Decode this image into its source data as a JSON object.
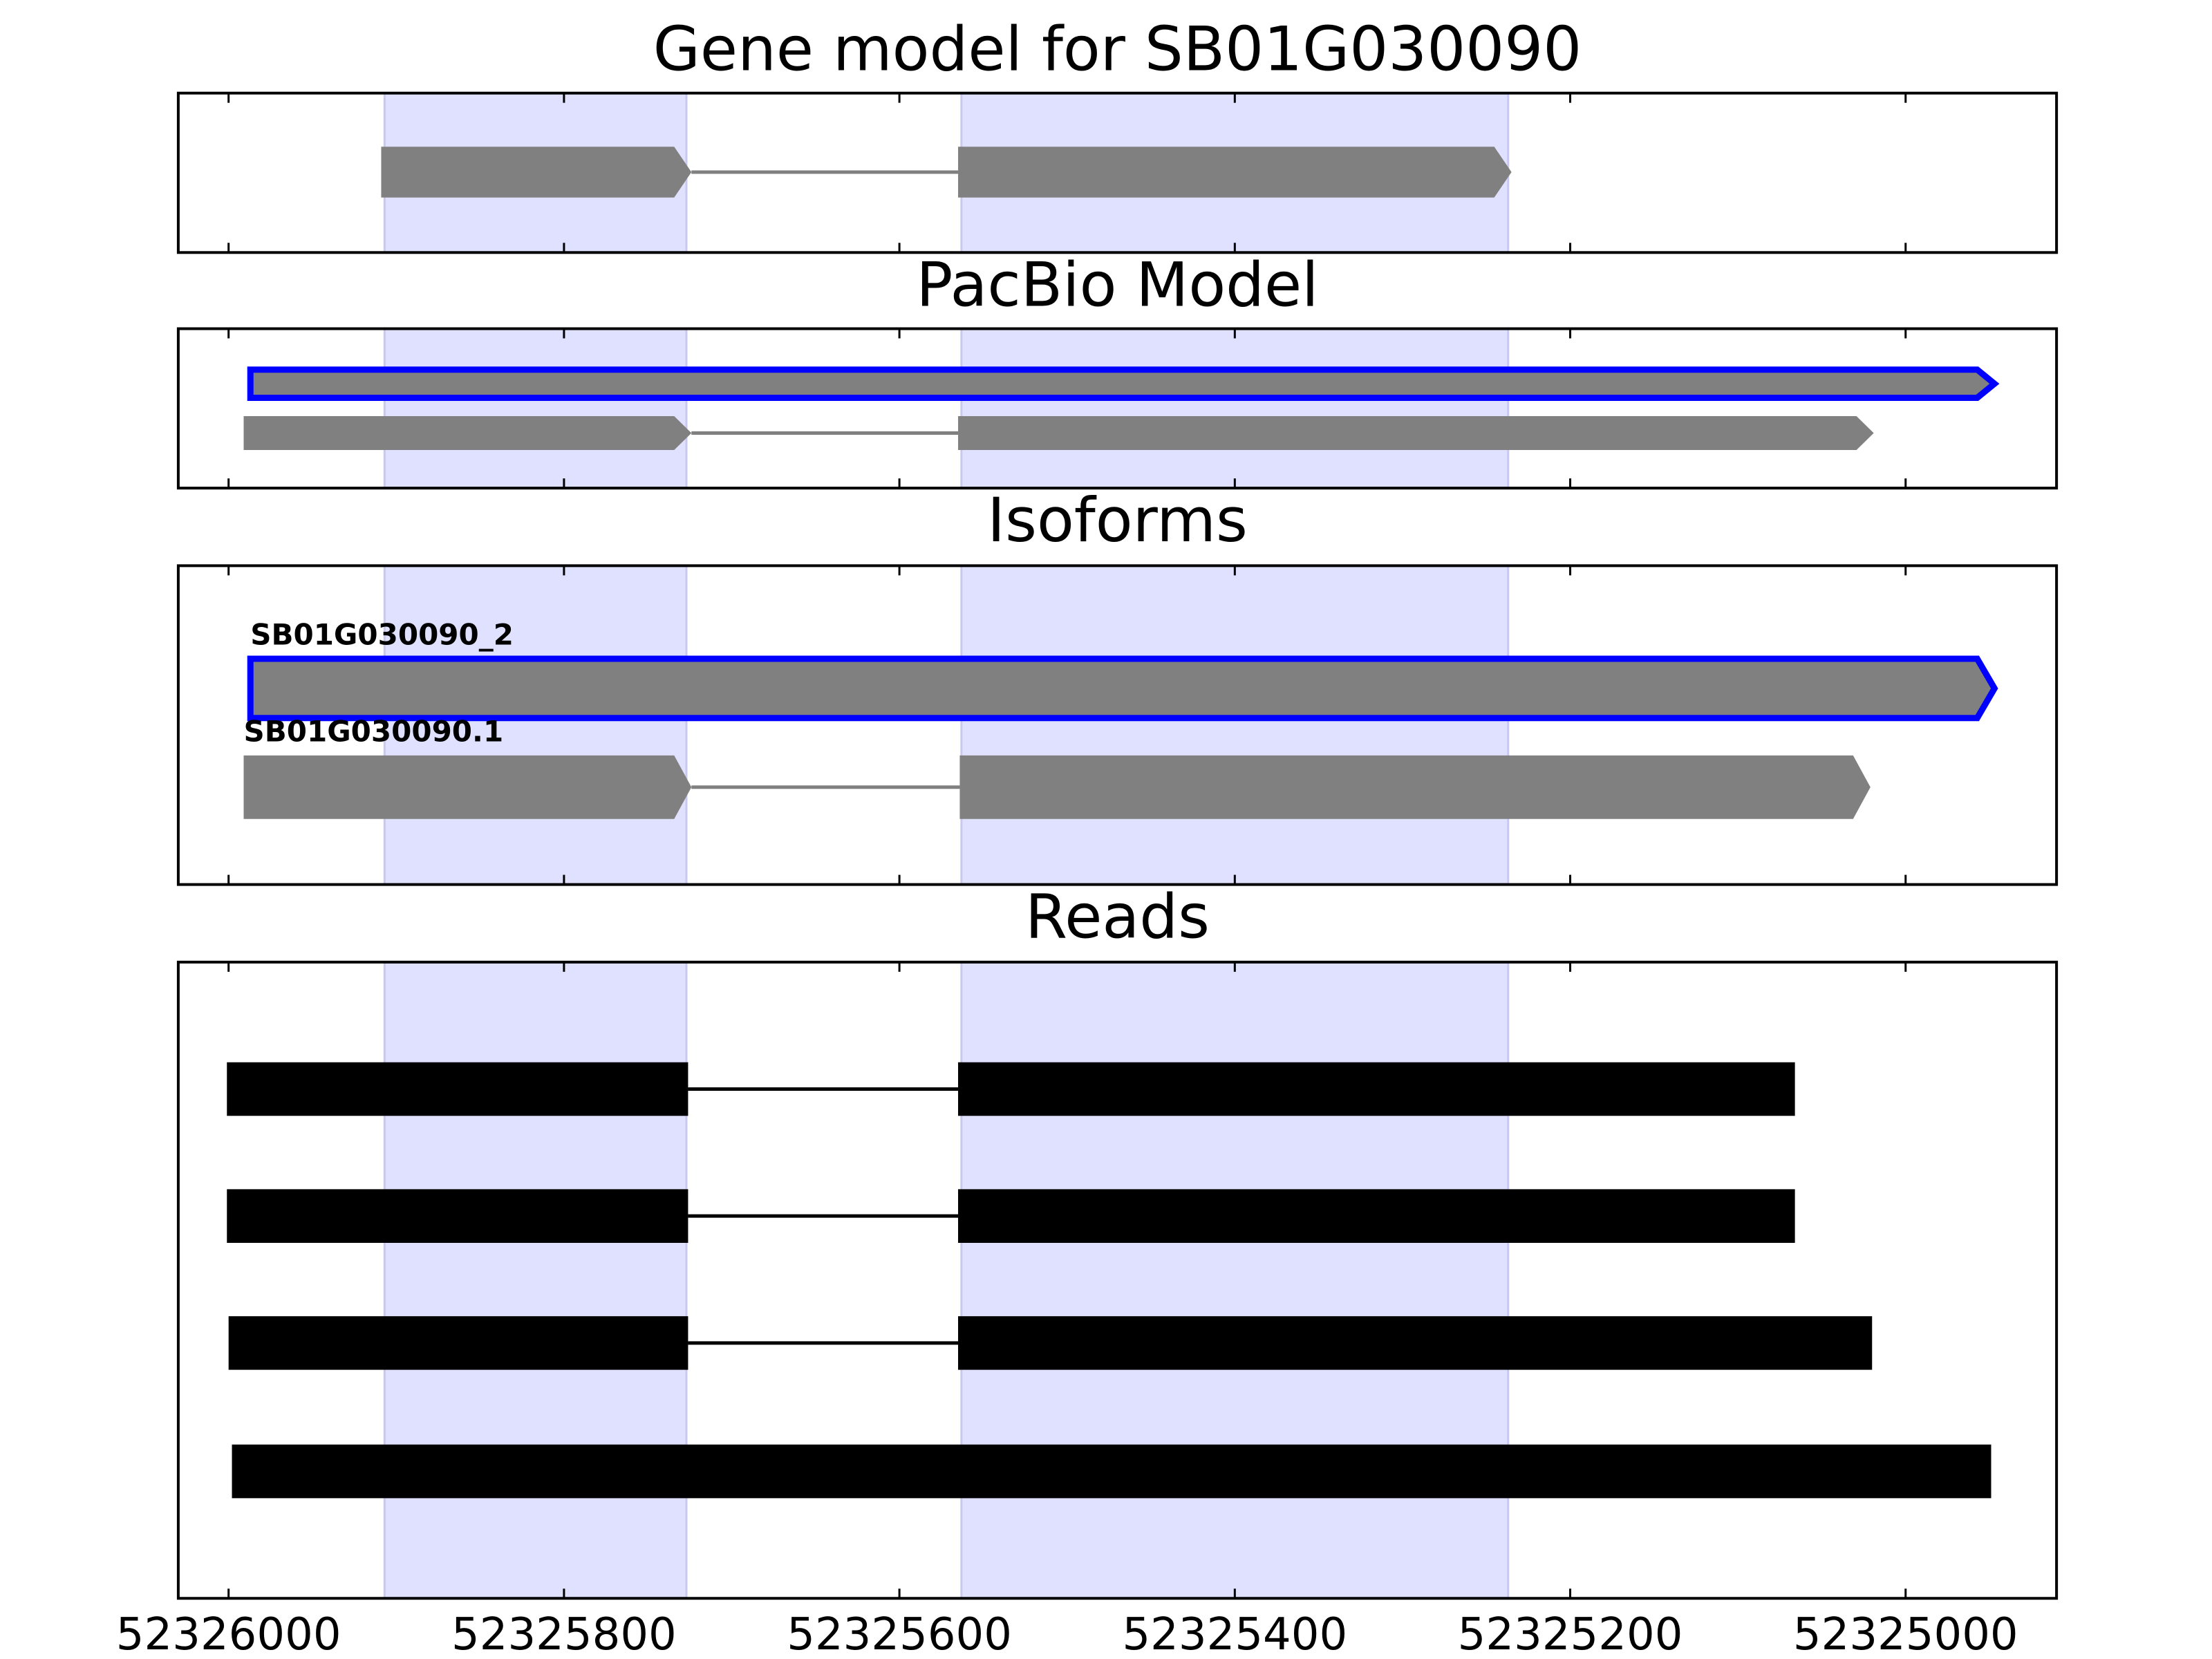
{
  "chart_data": [
    {
      "type": "gene",
      "title": "Gene model for SB01G030090",
      "xlim": [
        52326030,
        52324910
      ],
      "xticks": [
        52326000,
        52325800,
        52325600,
        52325400,
        52325200,
        52325000
      ],
      "highlights": [
        [
          52325907,
          52325727
        ],
        [
          52325563,
          52325237
        ]
      ],
      "highlight_color": "#e0e0ff",
      "arrows": true,
      "intron_color": "#808080",
      "features": [
        {
          "exons": [
            [
              52325909,
              52325724
            ],
            [
              52325565,
              52325235
            ]
          ],
          "color": "#808080"
        }
      ]
    },
    {
      "type": "gene",
      "title": "PacBio Model",
      "xlim": [
        52326030,
        52324910
      ],
      "xticks": [
        52326000,
        52325800,
        52325600,
        52325400,
        52325200,
        52325000
      ],
      "highlights": [
        [
          52325907,
          52325727
        ],
        [
          52325563,
          52325237
        ]
      ],
      "highlight_color": "#e0e0ff",
      "arrows": true,
      "intron_color": "#808080",
      "features": [
        {
          "exons": [
            [
              52325987,
              52324947
            ]
          ],
          "color": "#808080",
          "edgecolor": "#0000ff"
        },
        {
          "exons": [
            [
              52325991,
              52325724
            ],
            [
              52325565,
              52325019
            ]
          ],
          "color": "#808080"
        }
      ]
    },
    {
      "type": "gene",
      "title": "Isoforms",
      "xlim": [
        52326030,
        52324910
      ],
      "xticks": [
        52326000,
        52325800,
        52325600,
        52325400,
        52325200,
        52325000
      ],
      "highlights": [
        [
          52325907,
          52325727
        ],
        [
          52325563,
          52325237
        ]
      ],
      "highlight_color": "#e0e0ff",
      "arrows": true,
      "intron_color": "#808080",
      "features": [
        {
          "name": "SB01G030090_2",
          "exons": [
            [
              52325987,
              52324947
            ]
          ],
          "color": "#808080",
          "edgecolor": "#0000ff"
        },
        {
          "name": "SB01G030090.1",
          "exons": [
            [
              52325991,
              52325724
            ],
            [
              52325564,
              52325021
            ]
          ],
          "color": "#808080"
        }
      ]
    },
    {
      "type": "gene",
      "title": "Reads",
      "xlim": [
        52326030,
        52324910
      ],
      "xticks": [
        52326000,
        52325800,
        52325600,
        52325400,
        52325200,
        52325000
      ],
      "highlights": [
        [
          52325907,
          52325727
        ],
        [
          52325563,
          52325237
        ]
      ],
      "highlight_color": "#e0e0ff",
      "arrows": false,
      "intron_color": "#000000",
      "features": [
        {
          "exons": [
            [
              52326001,
              52325726
            ],
            [
              52325565,
              52325066
            ]
          ],
          "color": "#000000"
        },
        {
          "exons": [
            [
              52326001,
              52325726
            ],
            [
              52325565,
              52325066
            ]
          ],
          "color": "#000000"
        },
        {
          "exons": [
            [
              52326000,
              52325726
            ],
            [
              52325565,
              52325020
            ]
          ],
          "color": "#000000"
        },
        {
          "exons": [
            [
              52325998,
              52324949
            ]
          ],
          "color": "#000000"
        }
      ]
    }
  ]
}
